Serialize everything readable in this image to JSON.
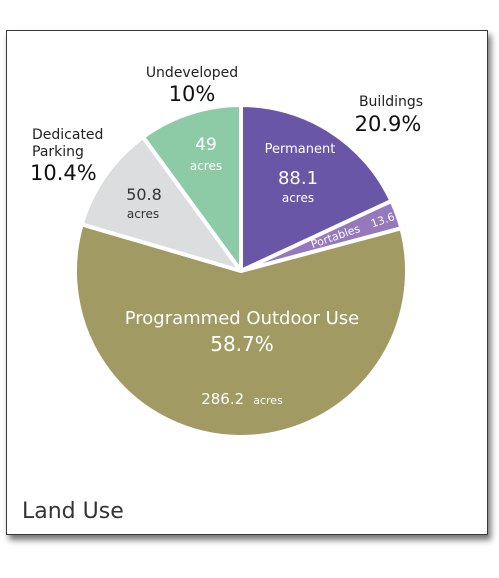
{
  "chart_data": {
    "type": "pie",
    "title": "Land Use",
    "unit": "acres",
    "slices": [
      {
        "name": "Permanent",
        "value": 88.1,
        "unit": "acres",
        "color": "#6A56A6"
      },
      {
        "name": "Portables",
        "value": 13.6,
        "color": "#9479BD"
      },
      {
        "name": "Programmed Outdoor Use",
        "value": 286.2,
        "percent": "58.7%",
        "unit": "acres",
        "color": "#A29A63"
      },
      {
        "name": "Dedicated Parking",
        "value": 50.8,
        "percent": "10.4%",
        "unit": "acres",
        "color": "#DCDDDE"
      },
      {
        "name": "Undeveloped",
        "value": 49,
        "percent": "10%",
        "unit": "acres",
        "color": "#8DCBA6"
      }
    ],
    "groups": [
      {
        "name": "Buildings",
        "percent": "20.9%",
        "members": [
          "Permanent",
          "Portables"
        ]
      }
    ]
  }
}
